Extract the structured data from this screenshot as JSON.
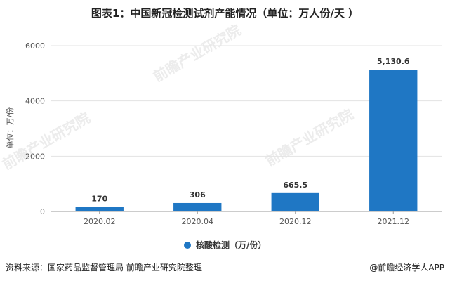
{
  "chart_data": {
    "type": "bar",
    "title": "图表1：中国新冠检测试剂产能情况（单位：万人份/天 ）",
    "ylabel": "单位：万/份",
    "categories": [
      "2020.02",
      "2020.04",
      "2020.12",
      "2021.12"
    ],
    "series": [
      {
        "name": "核酸检测（万/份）",
        "values": [
          170,
          306,
          665.5,
          5130.6
        ],
        "value_labels": [
          "170",
          "306",
          "665.5",
          "5,130.6"
        ],
        "color": "#1f77c4"
      }
    ],
    "ylim": [
      0,
      6000
    ],
    "yticks": [
      "0",
      "2000",
      "4000",
      "6000"
    ],
    "grid": true,
    "legend_position": "bottom"
  },
  "footer": {
    "source": "资料来源：国家药品监督管理局 前瞻产业研究院整理",
    "brand": "@前瞻经济学人APP"
  },
  "watermark": {
    "text": "前瞻产业研究院"
  }
}
